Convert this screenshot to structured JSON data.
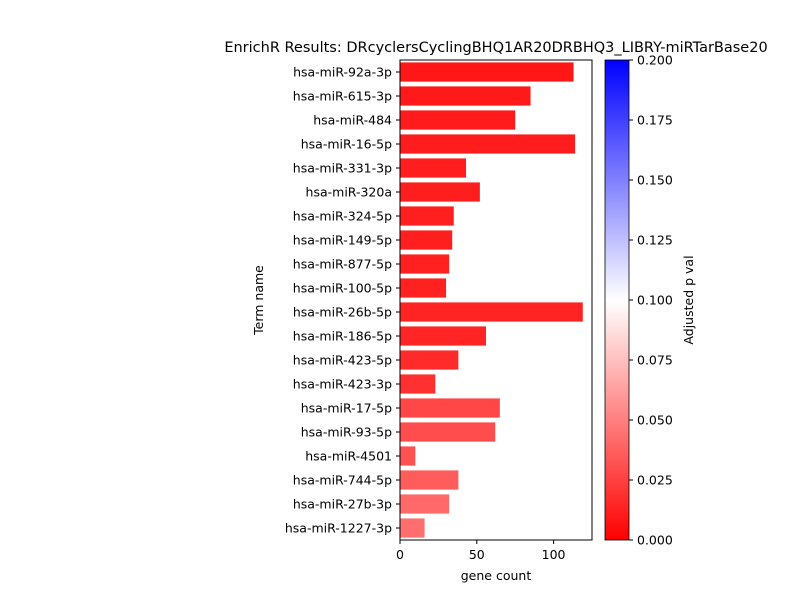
{
  "chart_data": {
    "type": "bar",
    "orientation": "horizontal",
    "title": "EnrichR Results: DRcyclersCyclingBHQ1AR20DRBHQ3_LIBRY-miRTarBase20",
    "xlabel": "gene count",
    "ylabel": "Term name",
    "xlim": [
      0,
      125
    ],
    "xticks": [
      0,
      50,
      100
    ],
    "grid": false,
    "categories": [
      "hsa-miR-92a-3p",
      "hsa-miR-615-3p",
      "hsa-miR-484",
      "hsa-miR-16-5p",
      "hsa-miR-331-3p",
      "hsa-miR-320a",
      "hsa-miR-324-5p",
      "hsa-miR-149-5p",
      "hsa-miR-877-5p",
      "hsa-miR-100-5p",
      "hsa-miR-26b-5p",
      "hsa-miR-186-5p",
      "hsa-miR-423-5p",
      "hsa-miR-423-3p",
      "hsa-miR-17-5p",
      "hsa-miR-93-5p",
      "hsa-miR-4501",
      "hsa-miR-744-5p",
      "hsa-miR-27b-3p",
      "hsa-miR-1227-3p"
    ],
    "values": [
      113,
      85,
      75,
      114,
      43,
      52,
      35,
      34,
      32,
      30,
      119,
      56,
      38,
      23,
      65,
      62,
      10,
      38,
      32,
      16
    ],
    "adjusted_p": [
      0.009,
      0.01,
      0.0105,
      0.011,
      0.0115,
      0.0118,
      0.012,
      0.0122,
      0.0124,
      0.0126,
      0.014,
      0.0145,
      0.017,
      0.019,
      0.028,
      0.03,
      0.032,
      0.036,
      0.041,
      0.043
    ],
    "colorbar": {
      "label": "Adjusted p val",
      "range": [
        0,
        0.2
      ],
      "ticks": [
        "0.000",
        "0.025",
        "0.050",
        "0.075",
        "0.100",
        "0.125",
        "0.150",
        "0.175",
        "0.200"
      ],
      "colormap": "bwr_r",
      "color_low": "#ff0000",
      "color_mid": "#ffffff",
      "color_high": "#0000ff"
    }
  }
}
